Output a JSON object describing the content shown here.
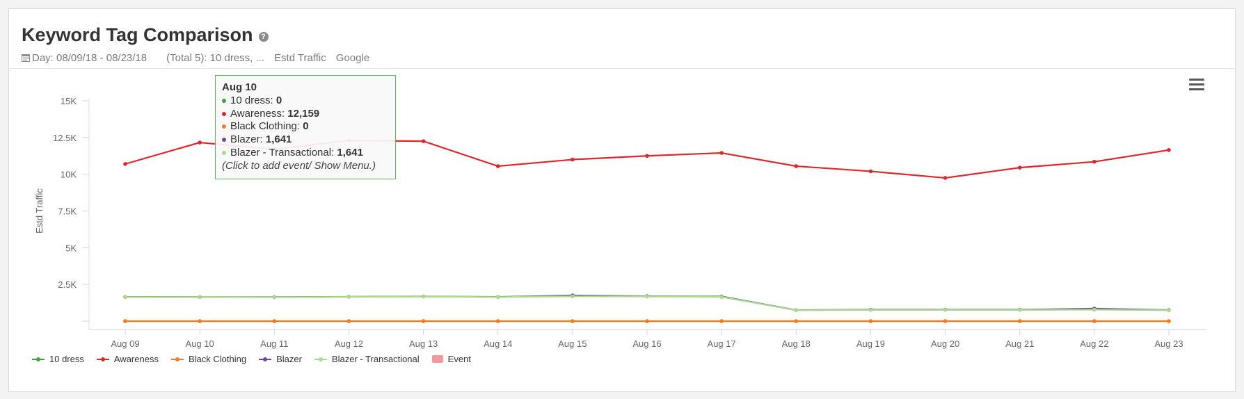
{
  "header": {
    "title": "Keyword Tag Comparison",
    "help_icon": "question-circle-icon",
    "date_icon": "calendar-icon",
    "date_range": "Day: 08/09/18 - 08/23/18",
    "tags_summary": "(Total 5): 10 dress, ...",
    "metric": "Estd Traffic",
    "engine": "Google"
  },
  "menu_icon": "hamburger-menu-icon",
  "tooltip": {
    "date": "Aug 10",
    "rows": [
      {
        "label": "10 dress: ",
        "value": "0",
        "color": "#3aa53a"
      },
      {
        "label": "Awareness: ",
        "value": "12,159",
        "color": "#e0262a"
      },
      {
        "label": "Black Clothing: ",
        "value": "0",
        "color": "#f27d22"
      },
      {
        "label": "Blazer: ",
        "value": "1,641",
        "color": "#6b4a9c"
      },
      {
        "label": "Blazer - Transactional: ",
        "value": "1,641",
        "color": "#a8db90"
      }
    ],
    "hint": "(Click to add event/ Show Menu.)"
  },
  "chart_data": {
    "type": "line",
    "ylabel": "Estd Traffic",
    "xlabel": "",
    "ylim": [
      0,
      15000
    ],
    "yticks": [
      2500,
      5000,
      7500,
      10000,
      12500,
      15000
    ],
    "ytick_labels": [
      "2.5K",
      "5K",
      "7.5K",
      "10K",
      "12.5K",
      "15K"
    ],
    "grid": false,
    "legend_position": "bottom-left",
    "categories": [
      "Aug 09",
      "Aug 10",
      "Aug 11",
      "Aug 12",
      "Aug 13",
      "Aug 14",
      "Aug 15",
      "Aug 16",
      "Aug 17",
      "Aug 18",
      "Aug 19",
      "Aug 20",
      "Aug 21",
      "Aug 22",
      "Aug 23"
    ],
    "series": [
      {
        "name": "10 dress",
        "color": "#3aa53a",
        "values": [
          0,
          0,
          0,
          0,
          0,
          0,
          0,
          0,
          0,
          0,
          0,
          0,
          0,
          0,
          0
        ]
      },
      {
        "name": "Awareness",
        "color": "#e0262a",
        "values": [
          10700,
          12159,
          11700,
          12300,
          12250,
          10550,
          11000,
          11250,
          11450,
          10550,
          10200,
          9750,
          10450,
          10850,
          11650
        ]
      },
      {
        "name": "Black Clothing",
        "color": "#f27d22",
        "values": [
          0,
          0,
          0,
          0,
          0,
          0,
          0,
          0,
          0,
          0,
          0,
          0,
          0,
          0,
          0
        ]
      },
      {
        "name": "Blazer",
        "color": "#6b4a9c",
        "values": [
          1650,
          1641,
          1640,
          1660,
          1680,
          1650,
          1750,
          1700,
          1680,
          750,
          780,
          780,
          780,
          850,
          760
        ]
      },
      {
        "name": "Blazer - Transactional",
        "color": "#a8db90",
        "values": [
          1640,
          1641,
          1630,
          1650,
          1670,
          1640,
          1690,
          1680,
          1650,
          740,
          760,
          760,
          760,
          780,
          740
        ]
      }
    ],
    "extra_legend": {
      "name": "Event",
      "color": "#f2999b"
    }
  }
}
